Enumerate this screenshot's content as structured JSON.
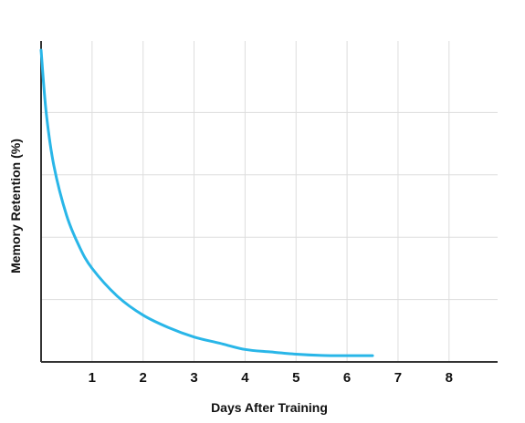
{
  "chart_data": {
    "type": "line",
    "title": "",
    "xlabel": "Days After Training",
    "ylabel": "Memory Retention (%)",
    "xlim": [
      0,
      9
    ],
    "ylim": [
      0,
      100
    ],
    "x_ticks": [
      1,
      2,
      3,
      4,
      5,
      6,
      7,
      8
    ],
    "x_tick_labels": [
      "1",
      "2",
      "3",
      "4",
      "5",
      "6",
      "7",
      "8"
    ],
    "y_gridlines": [
      20,
      40,
      60,
      80
    ],
    "y_tick_labels_shown": false,
    "grid": true,
    "legend": "none",
    "series": [
      {
        "color": "#29b6e8",
        "x": [
          0,
          0.1,
          0.25,
          0.5,
          0.75,
          1,
          1.5,
          2,
          2.5,
          3,
          3.5,
          4,
          4.5,
          5,
          5.5,
          6,
          6.5
        ],
        "y": [
          100,
          80,
          63,
          47,
          37,
          30,
          21,
          15,
          11,
          8,
          6,
          4,
          3.2,
          2.5,
          2.1,
          2,
          2
        ]
      }
    ]
  },
  "colors": {
    "curve": "#29b6e8",
    "axis": "#333333",
    "grid": "#dddddd"
  }
}
